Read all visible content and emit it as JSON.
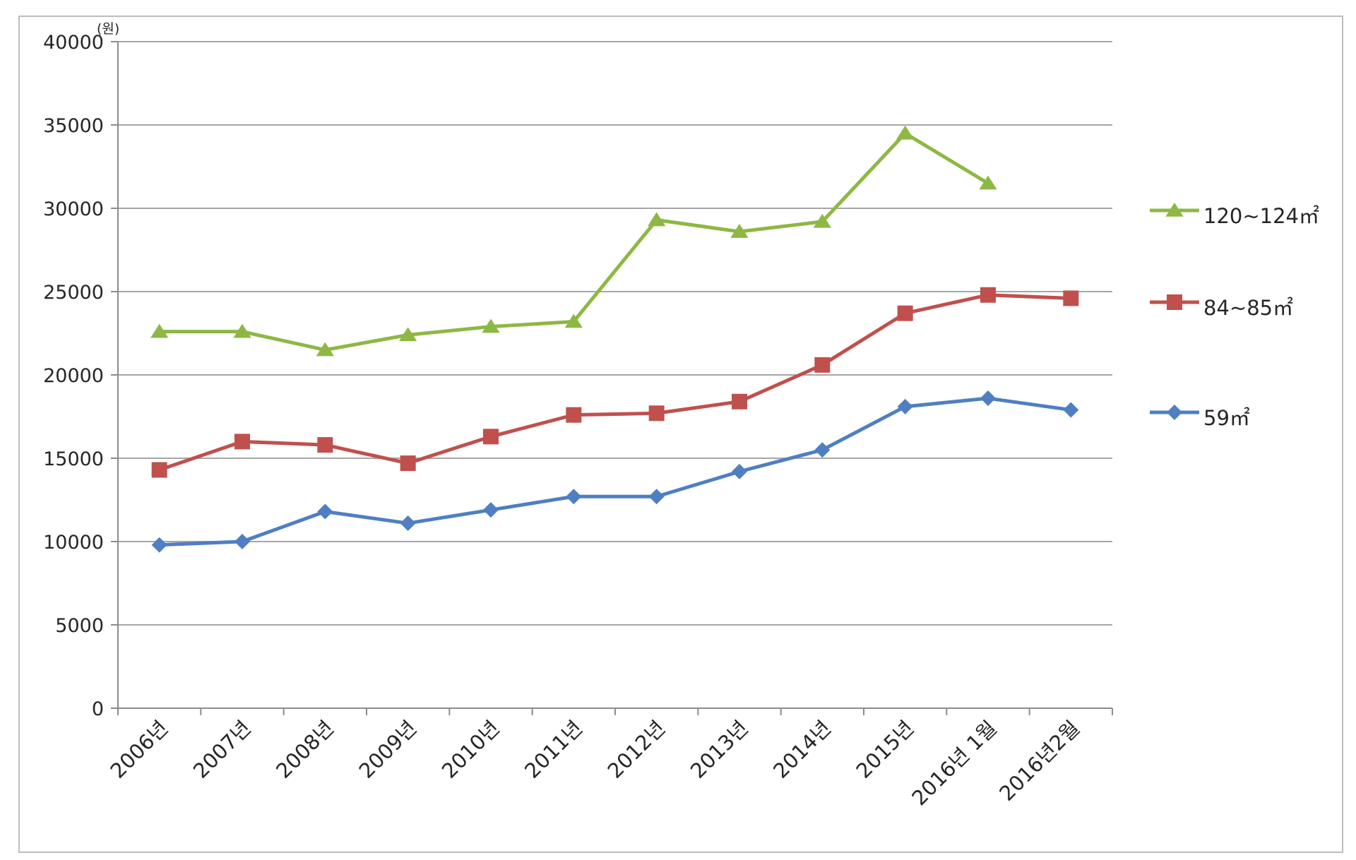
{
  "chart_data": {
    "type": "line",
    "title": "",
    "xlabel": "",
    "ylabel": "",
    "unit_label": "(원)",
    "ylim": [
      0,
      40000
    ],
    "yticks": [
      0,
      5000,
      10000,
      15000,
      20000,
      25000,
      30000,
      35000,
      40000
    ],
    "grid": true,
    "legend_position": "right",
    "categories": [
      "2006년",
      "2007년",
      "2008년",
      "2009년",
      "2010년",
      "2011년",
      "2012년",
      "2013년",
      "2014년",
      "2015년",
      "2016년 1월",
      "2016년2월"
    ],
    "series": [
      {
        "name": "120~124㎡",
        "color": "#8db843",
        "marker": "triangle",
        "values": [
          22600,
          22600,
          21500,
          22400,
          22900,
          23200,
          29300,
          28600,
          29200,
          34500,
          31500,
          null
        ]
      },
      {
        "name": "84~85㎡",
        "color": "#c0504d",
        "marker": "square",
        "values": [
          14300,
          16000,
          15800,
          14700,
          16300,
          17600,
          17700,
          18400,
          20600,
          23700,
          24800,
          24600
        ]
      },
      {
        "name": "59㎡",
        "color": "#4f7fc2",
        "marker": "diamond",
        "values": [
          9800,
          10000,
          11800,
          11100,
          11900,
          12700,
          12700,
          14200,
          15500,
          18100,
          18600,
          17900
        ]
      }
    ]
  }
}
